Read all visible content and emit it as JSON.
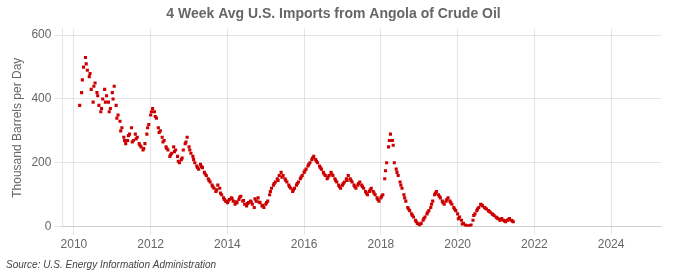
{
  "chart_data": {
    "type": "scatter",
    "title": "4 Week Avg U.S. Imports from Angola of Crude Oil",
    "y_label": "Thousand Barrels per Day",
    "annotations": [
      "Source: U.S. Energy Information Administration"
    ],
    "color": "#cc0000",
    "marker": "square",
    "grid": true,
    "xlim": [
      2009.7,
      2025.3
    ],
    "ylim": [
      0,
      620
    ],
    "xticks": [
      2010,
      2012,
      2014,
      2016,
      2018,
      2020,
      2022,
      2024
    ],
    "yticks": [
      0,
      200,
      400,
      600
    ],
    "x": [
      2010.15,
      2010.2,
      2010.25,
      2010.3,
      2010.35,
      2010.4,
      2010.45,
      2010.5,
      2010.55,
      2010.6,
      2010.65,
      2010.7,
      2010.75,
      2010.8,
      2010.85,
      2010.9,
      2010.95,
      2011.0,
      2011.05,
      2011.1,
      2011.15,
      2011.2,
      2011.25,
      2011.3,
      2011.35,
      2011.4,
      2011.45,
      2011.5,
      2011.55,
      2011.6,
      2011.65,
      2011.7,
      2011.75,
      2011.8,
      2011.85,
      2011.9,
      2011.95,
      2012.0,
      2012.05,
      2012.1,
      2012.15,
      2012.2,
      2012.25,
      2012.3,
      2012.35,
      2012.4,
      2012.45,
      2012.5,
      2012.55,
      2012.6,
      2012.65,
      2012.7,
      2012.75,
      2012.8,
      2012.85,
      2012.9,
      2012.95,
      2013.0,
      2013.05,
      2013.1,
      2013.15,
      2013.2,
      2013.25,
      2013.3,
      2013.35,
      2013.4,
      2013.45,
      2013.5,
      2013.55,
      2013.6,
      2013.65,
      2013.7,
      2013.75,
      2013.8,
      2013.85,
      2013.9,
      2013.95,
      2014.0,
      2014.05,
      2014.1,
      2014.15,
      2014.2,
      2014.25,
      2014.3,
      2014.35,
      2014.4,
      2014.45,
      2014.5,
      2014.55,
      2014.6,
      2014.65,
      2014.7,
      2014.75,
      2014.8,
      2014.85,
      2014.9,
      2014.95,
      2015.0,
      2015.05,
      2015.1,
      2015.15,
      2015.2,
      2015.25,
      2015.3,
      2015.35,
      2015.4,
      2015.45,
      2015.5,
      2015.55,
      2015.6,
      2015.65,
      2015.7,
      2015.75,
      2015.8,
      2015.85,
      2015.9,
      2015.95,
      2016.0,
      2016.05,
      2016.1,
      2016.15,
      2016.2,
      2016.25,
      2016.3,
      2016.35,
      2016.4,
      2016.45,
      2016.5,
      2016.55,
      2016.6,
      2016.65,
      2016.7,
      2016.75,
      2016.8,
      2016.85,
      2016.9,
      2016.95,
      2017.0,
      2017.05,
      2017.1,
      2017.15,
      2017.2,
      2017.25,
      2017.3,
      2017.35,
      2017.4,
      2017.45,
      2017.5,
      2017.55,
      2017.6,
      2017.65,
      2017.7,
      2017.75,
      2017.8,
      2017.85,
      2017.9,
      2017.95,
      2018.0,
      2018.05,
      2018.1,
      2018.15,
      2018.2,
      2018.25,
      2018.3,
      2018.35,
      2018.4,
      2018.45,
      2018.5,
      2018.55,
      2018.6,
      2018.65,
      2018.7,
      2018.75,
      2018.8,
      2018.85,
      2018.9,
      2018.95,
      2019.0,
      2019.05,
      2019.1,
      2019.15,
      2019.2,
      2019.25,
      2019.3,
      2019.35,
      2019.4,
      2019.45,
      2019.5,
      2019.55,
      2019.6,
      2019.65,
      2019.7,
      2019.75,
      2019.8,
      2019.85,
      2019.9,
      2019.95,
      2020.0,
      2020.05,
      2020.1,
      2020.15,
      2020.2,
      2020.25,
      2020.3,
      2020.35,
      2020.4,
      2020.45,
      2020.5,
      2020.55,
      2020.6,
      2020.65,
      2020.7,
      2020.75,
      2020.8,
      2020.85,
      2020.9,
      2020.95,
      2021.0,
      2021.05,
      2021.1,
      2021.15,
      2021.2,
      2021.25,
      2021.3,
      2021.35,
      2021.4,
      2021.45,
      2010.22,
      2010.32,
      2010.42,
      2010.52,
      2010.62,
      2010.72,
      2010.82,
      2010.92,
      2011.02,
      2011.12,
      2011.22,
      2011.32,
      2011.42,
      2011.52,
      2011.62,
      2011.72,
      2011.82,
      2011.92,
      2012.02,
      2012.12,
      2012.22,
      2012.32,
      2012.42,
      2012.52,
      2012.62,
      2012.72,
      2012.82,
      2012.92,
      2013.02,
      2013.12,
      2013.22,
      2013.32,
      2013.42,
      2013.52,
      2013.62,
      2013.72,
      2013.82,
      2013.92,
      2014.02,
      2014.12,
      2014.22,
      2014.32,
      2014.42,
      2014.52,
      2014.62,
      2014.72,
      2014.82,
      2014.92,
      2015.02,
      2015.12,
      2015.22,
      2015.32,
      2015.42,
      2015.52,
      2015.62,
      2015.72,
      2015.82,
      2015.92,
      2016.02,
      2016.12,
      2016.22,
      2016.32,
      2016.42,
      2016.52,
      2016.62,
      2016.72,
      2016.82,
      2016.92,
      2017.02,
      2017.12,
      2017.22,
      2017.32,
      2017.42,
      2017.52,
      2017.62,
      2017.72,
      2017.82,
      2017.92,
      2018.02,
      2018.12,
      2018.22,
      2018.32,
      2018.42,
      2018.52,
      2018.62,
      2018.72,
      2018.82,
      2018.92,
      2019.02,
      2019.12,
      2019.22,
      2019.32,
      2019.42,
      2019.52,
      2019.62,
      2019.72,
      2019.82,
      2019.92,
      2020.02,
      2020.12,
      2020.22,
      2020.32,
      2020.42,
      2020.52,
      2020.62,
      2020.72,
      2020.82,
      2020.92,
      2021.02,
      2021.12,
      2021.22,
      2021.32,
      2021.42
    ],
    "values": [
      380,
      420,
      500,
      530,
      490,
      470,
      430,
      390,
      450,
      420,
      380,
      360,
      400,
      430,
      410,
      390,
      370,
      420,
      440,
      380,
      350,
      330,
      310,
      280,
      260,
      270,
      290,
      310,
      270,
      290,
      280,
      260,
      250,
      240,
      260,
      290,
      320,
      350,
      370,
      360,
      340,
      310,
      300,
      280,
      270,
      250,
      240,
      220,
      230,
      250,
      240,
      220,
      200,
      210,
      240,
      260,
      280,
      250,
      230,
      220,
      200,
      190,
      180,
      195,
      185,
      170,
      160,
      150,
      140,
      130,
      120,
      110,
      130,
      120,
      100,
      90,
      80,
      75,
      85,
      90,
      80,
      70,
      75,
      85,
      95,
      80,
      70,
      65,
      75,
      80,
      70,
      60,
      80,
      90,
      75,
      65,
      60,
      70,
      80,
      100,
      120,
      130,
      140,
      150,
      160,
      170,
      160,
      150,
      140,
      130,
      120,
      110,
      120,
      130,
      140,
      150,
      160,
      170,
      180,
      190,
      200,
      210,
      220,
      210,
      200,
      190,
      180,
      170,
      160,
      150,
      160,
      170,
      160,
      150,
      140,
      130,
      120,
      130,
      140,
      150,
      160,
      150,
      140,
      130,
      120,
      130,
      140,
      130,
      120,
      110,
      100,
      110,
      120,
      110,
      100,
      90,
      80,
      90,
      100,
      150,
      200,
      250,
      290,
      270,
      200,
      180,
      160,
      140,
      120,
      100,
      80,
      60,
      50,
      40,
      30,
      20,
      10,
      5,
      10,
      20,
      30,
      40,
      50,
      60,
      80,
      100,
      110,
      100,
      90,
      80,
      70,
      80,
      90,
      80,
      70,
      60,
      50,
      40,
      30,
      20,
      10,
      5,
      2,
      0,
      5,
      20,
      40,
      50,
      60,
      70,
      65,
      60,
      55,
      50,
      45,
      40,
      35,
      30,
      25,
      20,
      25,
      20,
      15,
      20,
      25,
      20,
      15,
      460,
      510,
      480,
      440,
      410,
      370,
      390,
      360,
      400,
      340,
      300,
      270,
      285,
      265,
      275,
      255,
      245,
      310,
      360,
      345,
      295,
      265,
      245,
      225,
      235,
      205,
      215,
      265,
      240,
      210,
      185,
      188,
      165,
      145,
      125,
      115,
      105,
      85,
      80,
      88,
      78,
      92,
      82,
      72,
      77,
      87,
      77,
      67,
      75,
      110,
      135,
      145,
      155,
      145,
      125,
      115,
      135,
      155,
      175,
      195,
      215,
      205,
      185,
      165,
      155,
      165,
      145,
      125,
      135,
      145,
      145,
      125,
      135,
      125,
      105,
      115,
      105,
      85,
      95,
      175,
      270,
      255,
      170,
      130,
      90,
      55,
      35,
      15,
      8,
      25,
      45,
      70,
      105,
      95,
      75,
      85,
      75,
      55,
      25,
      8,
      3,
      3,
      35,
      55,
      68,
      58,
      48,
      38,
      28,
      22,
      18,
      22,
      18
    ]
  }
}
